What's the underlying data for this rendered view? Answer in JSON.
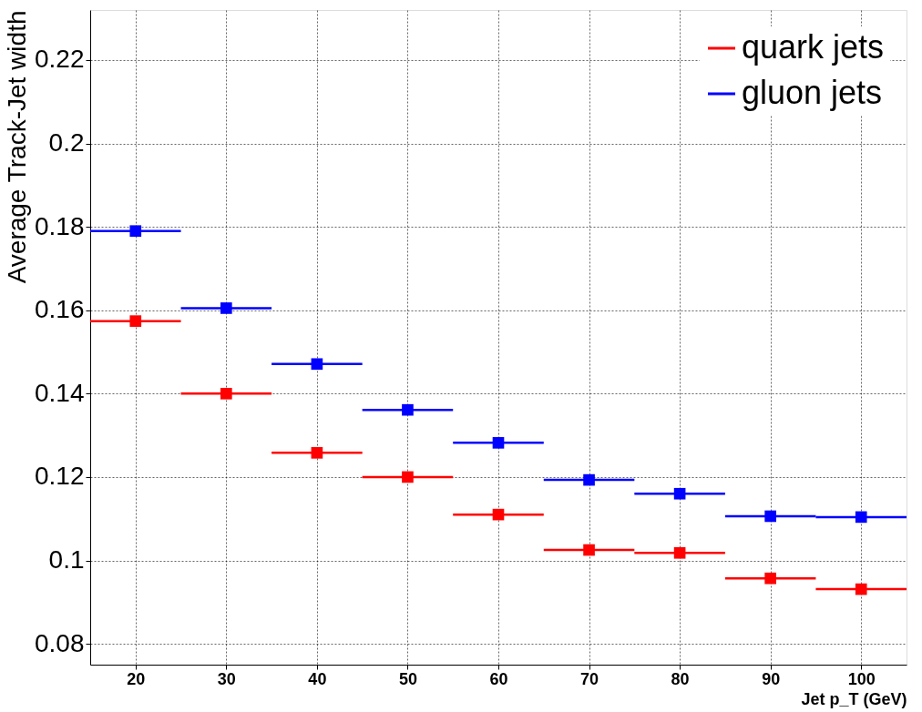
{
  "chart_data": {
    "type": "scatter",
    "xlabel": "Jet p_T (GeV)",
    "ylabel": "Average Track-Jet width",
    "x": [
      20,
      30,
      40,
      50,
      60,
      70,
      80,
      90,
      100
    ],
    "series": [
      {
        "name": "quark jets",
        "color": "#ff0000",
        "values": [
          0.1574,
          0.14,
          0.1258,
          0.12,
          0.111,
          0.1025,
          0.1018,
          0.0957,
          0.0931
        ],
        "xerrors": [
          5,
          5,
          5,
          5,
          5,
          5,
          5,
          5,
          5
        ]
      },
      {
        "name": "gluon jets",
        "color": "#0000ff",
        "values": [
          0.179,
          0.1605,
          0.1471,
          0.1361,
          0.1282,
          0.1193,
          0.116,
          0.1106,
          0.1104
        ],
        "xerrors": [
          5,
          5,
          5,
          5,
          5,
          5,
          5,
          5,
          5
        ]
      }
    ],
    "xlim": [
      15,
      105
    ],
    "ylim": [
      0.075,
      0.232
    ],
    "xticks": [
      20,
      30,
      40,
      50,
      60,
      70,
      80,
      90,
      100
    ],
    "yticks": [
      0.08,
      0.1,
      0.12,
      0.14,
      0.16,
      0.18,
      0.2,
      0.22
    ],
    "grid": true,
    "legend": "top right",
    "marker": "square"
  }
}
